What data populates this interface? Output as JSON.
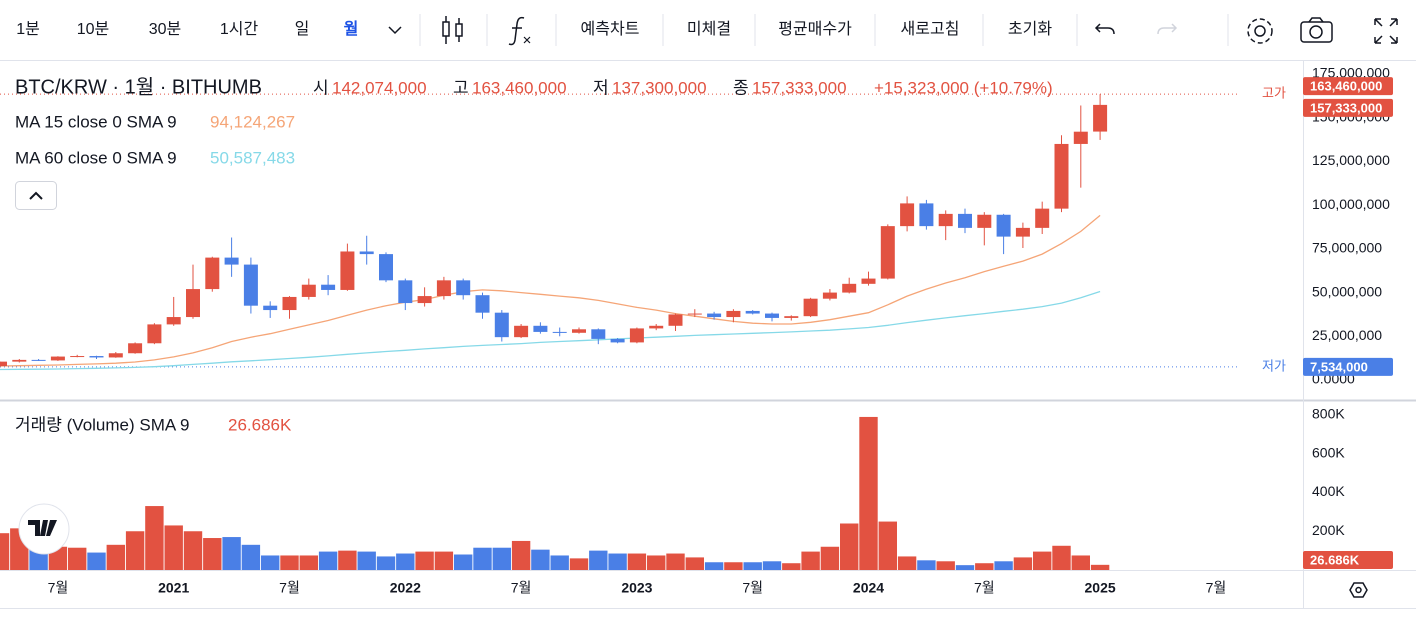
{
  "toolbar": {
    "intervals": [
      "1분",
      "10분",
      "30분",
      "1시간",
      "일",
      "월"
    ],
    "buttons": [
      "예측차트",
      "미체결",
      "평균매수가",
      "새로고침",
      "초기화"
    ]
  },
  "legend": {
    "symbol": "BTC/KRW · 1월 · BITHUMB",
    "ohlc": [
      {
        "prefix": "시",
        "text": "142,074,000"
      },
      {
        "prefix": "고",
        "text": "163,460,000"
      },
      {
        "prefix": "저",
        "text": "137,300,000"
      },
      {
        "prefix": "종",
        "text": "157,333,000"
      }
    ],
    "change": "+15,323,000 (+10.79%)"
  },
  "chart_data": {
    "type": "candlestick",
    "categories": [
      null,
      null,
      null,
      "7월",
      null,
      null,
      null,
      null,
      null,
      "2021",
      null,
      null,
      null,
      null,
      null,
      "7월",
      null,
      null,
      null,
      null,
      null,
      "2022",
      null,
      null,
      null,
      null,
      null,
      "7월",
      null,
      null,
      null,
      null,
      null,
      "2023",
      null,
      null,
      null,
      null,
      null,
      "7월",
      null,
      null,
      null,
      null,
      null,
      "2024",
      null,
      null,
      null,
      null,
      null,
      "7월",
      null,
      null,
      null,
      null,
      null,
      "2025",
      null,
      null,
      null,
      null,
      null,
      "7월"
    ],
    "open": [
      8000000,
      10500000,
      11500000,
      11200000,
      13400000,
      13700000,
      12900000,
      15300000,
      21000000,
      31800000,
      36000000,
      52000000,
      70000000,
      66000000,
      42500000,
      40000000,
      47500000,
      54500000,
      51500000,
      73500000,
      72000000,
      57000000,
      44000000,
      48000000,
      57000000,
      48500000,
      38500000,
      24500000,
      31000000,
      27500000,
      27000000,
      29000000,
      23500000,
      21500000,
      29500000,
      31000000,
      37500000,
      38000000,
      36000000,
      39500000,
      38000000,
      35500000,
      36500000,
      46500000,
      50000000,
      55000000,
      58000000,
      88000000,
      101000000,
      88000000,
      95000000,
      87000000,
      94500000,
      82000000,
      87000000,
      98000000,
      135000000,
      142074000,
      null,
      null,
      null,
      null,
      null,
      null
    ],
    "high": [
      10600000,
      12000000,
      12000000,
      13600000,
      14400000,
      13900000,
      16000000,
      21500000,
      32500000,
      47500000,
      66000000,
      70500000,
      81500000,
      70000000,
      45000000,
      48000000,
      58000000,
      60000000,
      78000000,
      82500000,
      73000000,
      58000000,
      53000000,
      59000000,
      58000000,
      50000000,
      40000000,
      32000000,
      33000000,
      30000000,
      30000000,
      29500000,
      24000000,
      30000000,
      32000000,
      38000000,
      40500000,
      39000000,
      40500000,
      40000000,
      38500000,
      37000000,
      47000000,
      52000000,
      58500000,
      62000000,
      89000000,
      105000000,
      103000000,
      97000000,
      98000000,
      96000000,
      95000000,
      90000000,
      102000000,
      140000000,
      157000000,
      163460000,
      null,
      null,
      null,
      null,
      null,
      null
    ],
    "low": [
      7534000,
      10000000,
      10900000,
      10900000,
      13000000,
      12000000,
      12700000,
      15000000,
      20500000,
      31000000,
      35000000,
      50500000,
      59000000,
      38000000,
      35500000,
      35000000,
      46000000,
      48500000,
      51000000,
      66000000,
      56000000,
      40000000,
      42000000,
      46000000,
      46000000,
      35000000,
      22000000,
      24000000,
      26500000,
      25000000,
      26500000,
      20500000,
      21000000,
      21000000,
      28500000,
      28000000,
      36000000,
      34500000,
      33000000,
      37500000,
      33500000,
      34000000,
      36000000,
      45500000,
      49500000,
      54000000,
      57500000,
      85000000,
      86000000,
      80000000,
      84000000,
      77000000,
      72000000,
      75500000,
      83500000,
      96000000,
      110000000,
      137300000,
      null,
      null,
      null,
      null,
      null,
      null
    ],
    "close": [
      10500000,
      11500000,
      11200000,
      13400000,
      13700000,
      12900000,
      15300000,
      21000000,
      31800000,
      36000000,
      52000000,
      70000000,
      66000000,
      42500000,
      40000000,
      47500000,
      54500000,
      51500000,
      73500000,
      72000000,
      57000000,
      44000000,
      48000000,
      57000000,
      48500000,
      38500000,
      24500000,
      31000000,
      27500000,
      27000000,
      29000000,
      23500000,
      21500000,
      29500000,
      31000000,
      37500000,
      38000000,
      36000000,
      39500000,
      38000000,
      35500000,
      36500000,
      46500000,
      50000000,
      55000000,
      58000000,
      88000000,
      101000000,
      88000000,
      95000000,
      87000000,
      94500000,
      82000000,
      87000000,
      98000000,
      135000000,
      142010000,
      157333000,
      null,
      null,
      null,
      null,
      null,
      null
    ],
    "up_color": "#e25241",
    "down_color": "#4a7fe6",
    "ylim": [
      0,
      175000000
    ],
    "yticks": [
      {
        "value": 0,
        "label": "0.0000"
      },
      {
        "value": 25000000,
        "label": "25,000,000"
      },
      {
        "value": 50000000,
        "label": "50,000,000"
      },
      {
        "value": 75000000,
        "label": "75,000,000"
      },
      {
        "value": 100000000,
        "label": "100,000,000"
      },
      {
        "value": 125000000,
        "label": "125,000,000"
      },
      {
        "value": 150000000,
        "label": "150,000,000"
      },
      {
        "value": 175000000,
        "label": "175,000,000"
      }
    ],
    "series": [
      {
        "name": "MA 15 close 0 SMA 9",
        "color": "#f5a577",
        "value_label": "94,124,267",
        "values": [
          8000000,
          8200000,
          8400000,
          8600000,
          8900000,
          9200000,
          9600000,
          10300000,
          11500000,
          13200000,
          15500000,
          18500000,
          22000000,
          24500000,
          26500000,
          29000000,
          31500000,
          34000000,
          37000000,
          40000000,
          42500000,
          44500000,
          46000000,
          48500000,
          50500000,
          51500000,
          51000000,
          50000000,
          49000000,
          48000000,
          47000000,
          45500000,
          43500000,
          41500000,
          40000000,
          38000000,
          36500000,
          35000000,
          33500000,
          32500000,
          32000000,
          32000000,
          33000000,
          34500000,
          36500000,
          38500000,
          43000000,
          48000000,
          52000000,
          55500000,
          58500000,
          62000000,
          65000000,
          68000000,
          72000000,
          78000000,
          85000000,
          94124267,
          null,
          null,
          null,
          null,
          null,
          null
        ]
      },
      {
        "name": "MA 60 close 0 SMA 9",
        "color": "#86d9e8",
        "value_label": "50,587,483",
        "values": [
          6000000,
          6100000,
          6200000,
          6300000,
          6500000,
          6700000,
          6900000,
          7200000,
          7600000,
          8200000,
          8900000,
          9600000,
          10400000,
          11000000,
          11600000,
          12300000,
          13000000,
          13800000,
          14700000,
          15500000,
          16300000,
          17000000,
          17800000,
          18500000,
          19200000,
          19800000,
          20300000,
          20800000,
          21500000,
          22000000,
          22500000,
          23000000,
          23500000,
          24000000,
          24500000,
          25000000,
          25500000,
          25900000,
          26300000,
          26700000,
          27100000,
          27500000,
          28000000,
          28500000,
          29200000,
          30000000,
          31300000,
          32800000,
          34200000,
          35500000,
          36800000,
          38000000,
          39300000,
          40500000,
          42000000,
          44000000,
          47000000,
          50587483,
          null,
          null,
          null,
          null,
          null,
          null
        ]
      }
    ],
    "volume": {
      "name": "거래량 (Volume) SMA 9",
      "axis": "y2",
      "value_label": "26.686K",
      "values": [
        190000,
        215000,
        110000,
        120000,
        115000,
        90000,
        130000,
        200000,
        330000,
        230000,
        200000,
        165000,
        170000,
        130000,
        75000,
        75000,
        75000,
        95000,
        100000,
        95000,
        70000,
        85000,
        95000,
        95000,
        80000,
        115000,
        115000,
        150000,
        105000,
        75000,
        60000,
        100000,
        85000,
        85000,
        75000,
        85000,
        65000,
        40000,
        40000,
        40000,
        45000,
        35000,
        95000,
        120000,
        240000,
        790000,
        250000,
        70000,
        50000,
        45000,
        25000,
        35000,
        45000,
        65000,
        95000,
        125000,
        75000,
        26686,
        null,
        null,
        null,
        null,
        null,
        null
      ]
    },
    "y2lim": [
      0,
      800000
    ],
    "y2ticks": [
      {
        "value": 200000,
        "label": "200K"
      },
      {
        "value": 400000,
        "label": "400K"
      },
      {
        "value": 600000,
        "label": "600K"
      },
      {
        "value": 800000,
        "label": "800K"
      }
    ],
    "high_marker": {
      "label": "고가",
      "value": 163460000,
      "value_label": "163,460,000"
    },
    "low_marker": {
      "label": "저가",
      "value": 7534000,
      "value_label": "7,534,000"
    },
    "last_marker": {
      "value": 157333000,
      "value_label": "157,333,000"
    }
  }
}
